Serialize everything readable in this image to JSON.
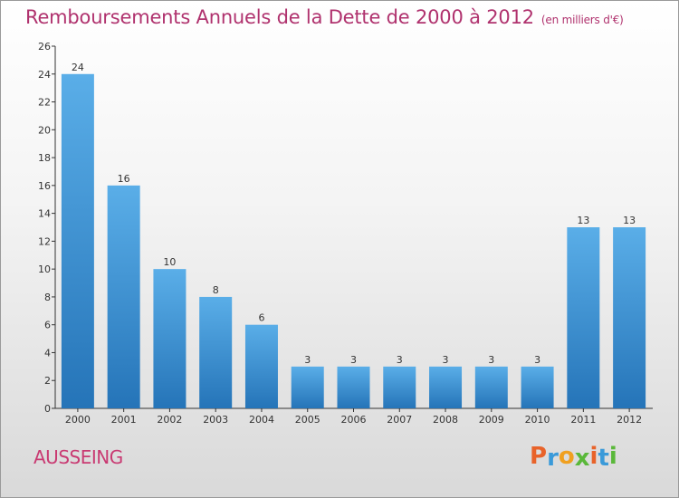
{
  "title": "Remboursements Annuels de la Dette de 2000 à 2012",
  "subtitle": "(en milliers d'€)",
  "commune": "AUSSEING",
  "brand": {
    "text": "Proxiti",
    "letter_colors": [
      "#e8632a",
      "#3a9ad9",
      "#f0a020",
      "#5ab83a",
      "#e8632a",
      "#3a9ad9",
      "#5ab83a"
    ]
  },
  "colors": {
    "bar_light": "#5aaee8",
    "bar_dark": "#2574b8",
    "title": "#b0326e",
    "axis": "#333333"
  },
  "chart_data": {
    "type": "bar",
    "categories": [
      "2000",
      "2001",
      "2002",
      "2003",
      "2004",
      "2005",
      "2006",
      "2007",
      "2008",
      "2009",
      "2010",
      "2011",
      "2012"
    ],
    "values": [
      24,
      16,
      10,
      8,
      6,
      3,
      3,
      3,
      3,
      3,
      3,
      13,
      13
    ],
    "data_labels": [
      "24",
      "16",
      "10",
      "8",
      "6",
      "3",
      "3",
      "3",
      "3",
      "3",
      "3",
      "13",
      "13"
    ],
    "ylim": [
      0,
      26
    ],
    "yticks": [
      0,
      2,
      4,
      6,
      8,
      10,
      12,
      14,
      16,
      18,
      20,
      22,
      24,
      26
    ],
    "grid": false,
    "xlabel": "",
    "ylabel": ""
  }
}
